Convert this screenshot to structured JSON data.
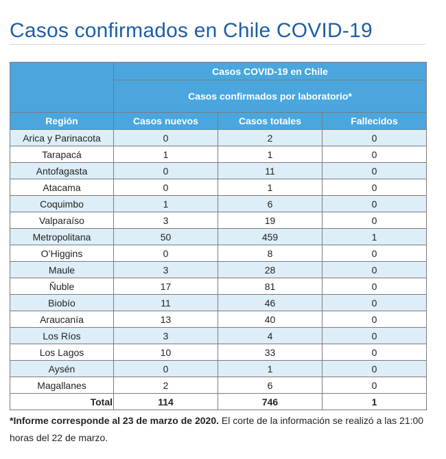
{
  "page": {
    "title": "Casos confirmados en Chile COVID-19"
  },
  "table": {
    "header_main": "Casos COVID-19 en Chile",
    "header_sub": "Casos confirmados por laboratorio*",
    "columns": [
      "Región",
      "Casos nuevos",
      "Casos totales",
      "Fallecidos"
    ],
    "rows": [
      {
        "region": "Arica y Parinacota",
        "nuevos": "0",
        "totales": "2",
        "fallecidos": "0"
      },
      {
        "region": "Tarapacá",
        "nuevos": "1",
        "totales": "1",
        "fallecidos": "0"
      },
      {
        "region": "Antofagasta",
        "nuevos": "0",
        "totales": "11",
        "fallecidos": "0"
      },
      {
        "region": "Atacama",
        "nuevos": "0",
        "totales": "1",
        "fallecidos": "0"
      },
      {
        "region": "Coquimbo",
        "nuevos": "1",
        "totales": "6",
        "fallecidos": "0"
      },
      {
        "region": "Valparaíso",
        "nuevos": "3",
        "totales": "19",
        "fallecidos": "0"
      },
      {
        "region": "Metropolitana",
        "nuevos": "50",
        "totales": "459",
        "fallecidos": "1"
      },
      {
        "region": "O’Higgins",
        "nuevos": "0",
        "totales": "8",
        "fallecidos": "0"
      },
      {
        "region": "Maule",
        "nuevos": "3",
        "totales": "28",
        "fallecidos": "0"
      },
      {
        "region": "Ñuble",
        "nuevos": "17",
        "totales": "81",
        "fallecidos": "0"
      },
      {
        "region": "Biobío",
        "nuevos": "11",
        "totales": "46",
        "fallecidos": "0"
      },
      {
        "region": "Araucanía",
        "nuevos": "13",
        "totales": "40",
        "fallecidos": "0"
      },
      {
        "region": "Los Ríos",
        "nuevos": "3",
        "totales": "4",
        "fallecidos": "0"
      },
      {
        "region": "Los Lagos",
        "nuevos": "10",
        "totales": "33",
        "fallecidos": "0"
      },
      {
        "region": "Aysén",
        "nuevos": "0",
        "totales": "1",
        "fallecidos": "0"
      },
      {
        "region": "Magallanes",
        "nuevos": "2",
        "totales": "6",
        "fallecidos": "0"
      }
    ],
    "total": {
      "label": "Total",
      "nuevos": "114",
      "totales": "746",
      "fallecidos": "1"
    }
  },
  "footnote": {
    "bold": "*Informe corresponde al 23 de marzo de 2020.",
    "rest": " El corte de la información se realizó a las 21:00 horas del 22 de marzo."
  }
}
